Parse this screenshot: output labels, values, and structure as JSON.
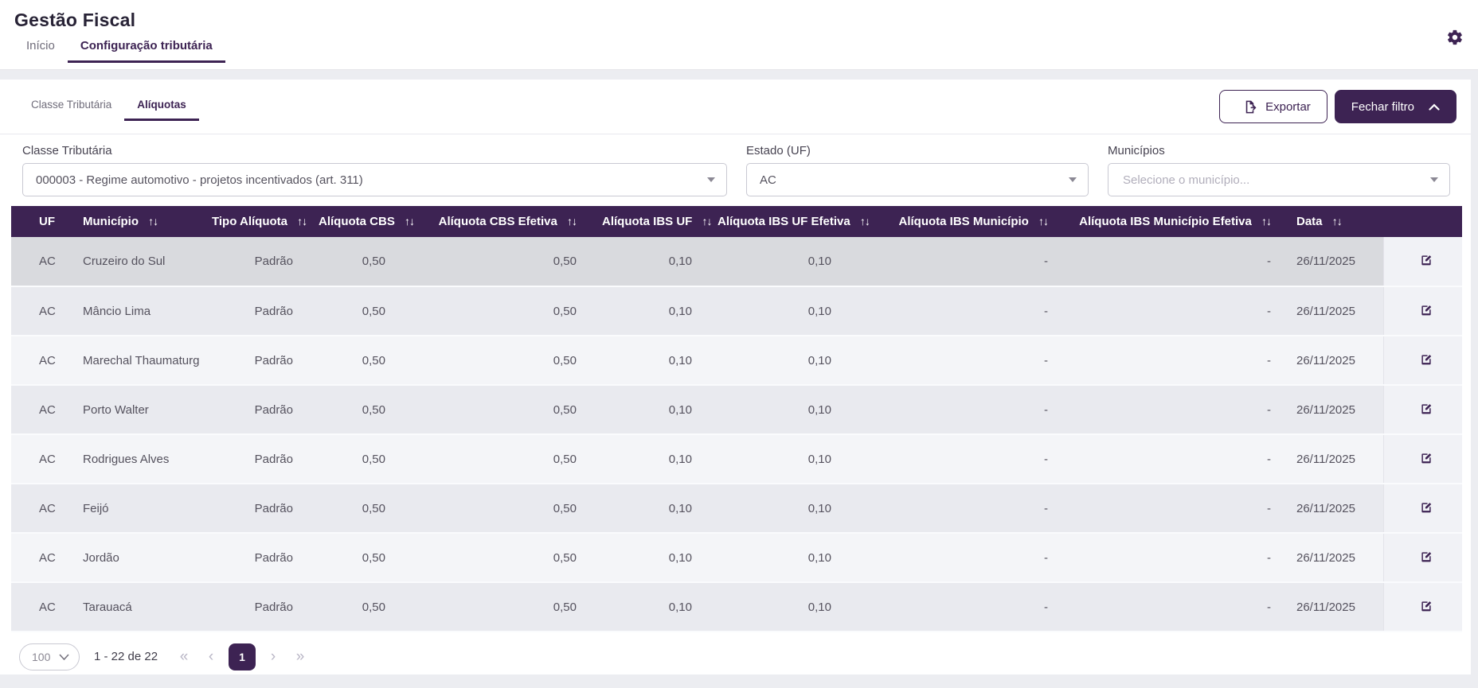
{
  "header": {
    "title": "Gestão Fiscal",
    "tabs": [
      {
        "label": "Início",
        "active": false
      },
      {
        "label": "Configuração tributária",
        "active": true
      }
    ]
  },
  "toolbar": {
    "subtabs": [
      {
        "label": "Classe Tributária",
        "active": false
      },
      {
        "label": "Alíquotas",
        "active": true
      }
    ],
    "export_label": "Exportar",
    "close_filter_label": "Fechar filtro"
  },
  "filters": {
    "classe_tributaria": {
      "label": "Classe Tributária",
      "value": "000003 - Regime automotivo - projetos incentivados (art. 311)"
    },
    "estado": {
      "label": "Estado (UF)",
      "value": "AC"
    },
    "municipios": {
      "label": "Municípios",
      "placeholder": "Selecione o município..."
    }
  },
  "table": {
    "columns": [
      {
        "label": "UF",
        "sortable": false,
        "align": "left"
      },
      {
        "label": "Município",
        "sortable": true,
        "align": "left"
      },
      {
        "label": "Tipo Alíquota",
        "sortable": true,
        "align": "right"
      },
      {
        "label": "Alíquota CBS",
        "sortable": true,
        "align": "right"
      },
      {
        "label": "Alíquota CBS Efetiva",
        "sortable": true,
        "align": "right"
      },
      {
        "label": "Alíquota IBS UF",
        "sortable": true,
        "align": "right"
      },
      {
        "label": "Alíquota IBS UF Efetiva",
        "sortable": true,
        "align": "right"
      },
      {
        "label": "Alíquota IBS Município",
        "sortable": true,
        "align": "right"
      },
      {
        "label": "Alíquota IBS Município Efetiva",
        "sortable": true,
        "align": "right"
      },
      {
        "label": "Data",
        "sortable": true,
        "align": "left"
      }
    ],
    "widths": [
      74,
      162,
      134,
      116,
      240,
      145,
      175,
      272,
      280,
      125
    ],
    "action_column_width": 108,
    "rows": [
      [
        "AC",
        "Cruzeiro do Sul",
        "Padrão",
        "0,50",
        "0,50",
        "0,10",
        "0,10",
        "-",
        "-",
        "26/11/2025"
      ],
      [
        "AC",
        "Mâncio Lima",
        "Padrão",
        "0,50",
        "0,50",
        "0,10",
        "0,10",
        "-",
        "-",
        "26/11/2025"
      ],
      [
        "AC",
        "Marechal Thaumaturgo",
        "Padrão",
        "0,50",
        "0,50",
        "0,10",
        "0,10",
        "-",
        "-",
        "26/11/2025"
      ],
      [
        "AC",
        "Porto Walter",
        "Padrão",
        "0,50",
        "0,50",
        "0,10",
        "0,10",
        "-",
        "-",
        "26/11/2025"
      ],
      [
        "AC",
        "Rodrigues Alves",
        "Padrão",
        "0,50",
        "0,50",
        "0,10",
        "0,10",
        "-",
        "-",
        "26/11/2025"
      ],
      [
        "AC",
        "Feijó",
        "Padrão",
        "0,50",
        "0,50",
        "0,10",
        "0,10",
        "-",
        "-",
        "26/11/2025"
      ],
      [
        "AC",
        "Jordão",
        "Padrão",
        "0,50",
        "0,50",
        "0,10",
        "0,10",
        "-",
        "-",
        "26/11/2025"
      ],
      [
        "AC",
        "Tarauacá",
        "Padrão",
        "0,50",
        "0,50",
        "0,10",
        "0,10",
        "-",
        "-",
        "26/11/2025"
      ]
    ]
  },
  "pagination": {
    "page_size": "100",
    "range": "1 - 22 de 22",
    "page": "1",
    "first_icon": "«",
    "prev_icon": "‹",
    "next_icon": "›",
    "last_icon": "»"
  },
  "icons": {
    "settings": "gear-icon",
    "export": "file-export-icon",
    "close_filter": "chevron-up-icon",
    "sort": "sort-arrows-icon",
    "edit": "edit-pencil-icon",
    "select": "caret-down-icon"
  },
  "colors": {
    "primary": "#3d2353",
    "page-bg": "#ecedf1",
    "row-selected": "#d9dade",
    "row-even": "#e9eaef",
    "row-odd": "#f4f5f8",
    "action-bg": "#f1f2f6"
  }
}
